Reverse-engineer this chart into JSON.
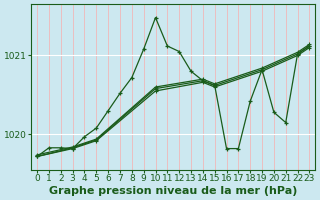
{
  "title": "Graphe pression niveau de la mer (hPa)",
  "background_color": "#cce8f0",
  "plot_bg_color": "#cce8f0",
  "grid_color_v": "#f0b8b8",
  "grid_color_h": "#ffffff",
  "line_color": "#1a5c1a",
  "text_color": "#1a5c1a",
  "xlim": [
    -0.5,
    23.5
  ],
  "ylim": [
    1019.55,
    1021.65
  ],
  "yticks": [
    1020,
    1021
  ],
  "xticks": [
    0,
    1,
    2,
    3,
    4,
    5,
    6,
    7,
    8,
    9,
    10,
    11,
    12,
    13,
    14,
    15,
    16,
    17,
    18,
    19,
    20,
    21,
    22,
    23
  ],
  "main_line": {
    "x": [
      0,
      1,
      2,
      3,
      4,
      5,
      6,
      7,
      8,
      9,
      10,
      11,
      12,
      13,
      14,
      15,
      16,
      17,
      18,
      19,
      20,
      21,
      22,
      23
    ],
    "y": [
      1019.72,
      1019.83,
      1019.83,
      1019.82,
      1019.97,
      1020.08,
      1020.3,
      1020.52,
      1020.72,
      1021.08,
      1021.48,
      1021.12,
      1021.05,
      1020.8,
      1020.68,
      1020.62,
      1019.82,
      1019.82,
      1020.42,
      1020.82,
      1020.28,
      1020.15,
      1021.02,
      1021.12
    ]
  },
  "trend_lines": [
    {
      "x": [
        0,
        3,
        5,
        10,
        14,
        15,
        19,
        22,
        23
      ],
      "y": [
        1019.72,
        1019.83,
        1019.93,
        1020.58,
        1020.68,
        1020.62,
        1020.82,
        1021.02,
        1021.12
      ]
    },
    {
      "x": [
        0,
        3,
        5,
        10,
        14,
        15,
        19,
        22,
        23
      ],
      "y": [
        1019.72,
        1019.82,
        1019.92,
        1020.55,
        1020.66,
        1020.6,
        1020.8,
        1021.0,
        1021.1
      ]
    },
    {
      "x": [
        0,
        3,
        5,
        10,
        14,
        15,
        19,
        22,
        23
      ],
      "y": [
        1019.74,
        1019.84,
        1019.94,
        1020.6,
        1020.7,
        1020.64,
        1020.84,
        1021.04,
        1021.14
      ]
    }
  ],
  "title_fontsize": 8,
  "tick_fontsize": 6.5
}
